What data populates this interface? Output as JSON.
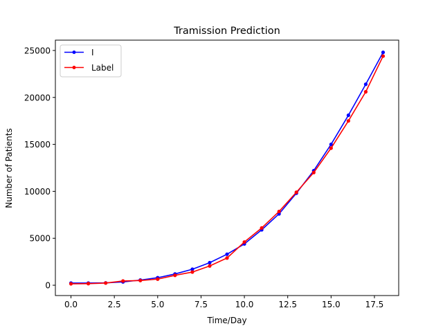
{
  "chart_data": {
    "type": "line",
    "title": "Tramission Prediction",
    "xlabel": "Time/Day",
    "ylabel": "Number of Patients",
    "xlim": [
      -0.9,
      18.9
    ],
    "ylim": [
      -1100,
      26100
    ],
    "xticks": [
      0.0,
      2.5,
      5.0,
      7.5,
      10.0,
      12.5,
      15.0,
      17.5
    ],
    "xtick_labels": [
      "0.0",
      "2.5",
      "5.0",
      "7.5",
      "10.0",
      "12.5",
      "15.0",
      "17.5"
    ],
    "yticks": [
      0,
      5000,
      10000,
      15000,
      20000,
      25000
    ],
    "ytick_labels": [
      "0",
      "5000",
      "10000",
      "15000",
      "20000",
      "25000"
    ],
    "grid": false,
    "legend_position": "upper-left",
    "x": [
      0,
      1,
      2,
      3,
      4,
      5,
      6,
      7,
      8,
      9,
      10,
      11,
      12,
      13,
      14,
      15,
      16,
      17,
      18
    ],
    "series": [
      {
        "name": "I",
        "color": "#0000ff",
        "values": [
          230,
          230,
          250,
          350,
          550,
          800,
          1200,
          1700,
          2400,
          3300,
          4400,
          5900,
          7600,
          9800,
          12200,
          15000,
          18100,
          21400,
          24800
        ]
      },
      {
        "name": "Label",
        "color": "#ff0000",
        "values": [
          150,
          170,
          230,
          450,
          500,
          650,
          1050,
          1400,
          2050,
          2900,
          4600,
          6100,
          7850,
          9900,
          12000,
          14600,
          17500,
          20600,
          24400
        ]
      }
    ]
  }
}
